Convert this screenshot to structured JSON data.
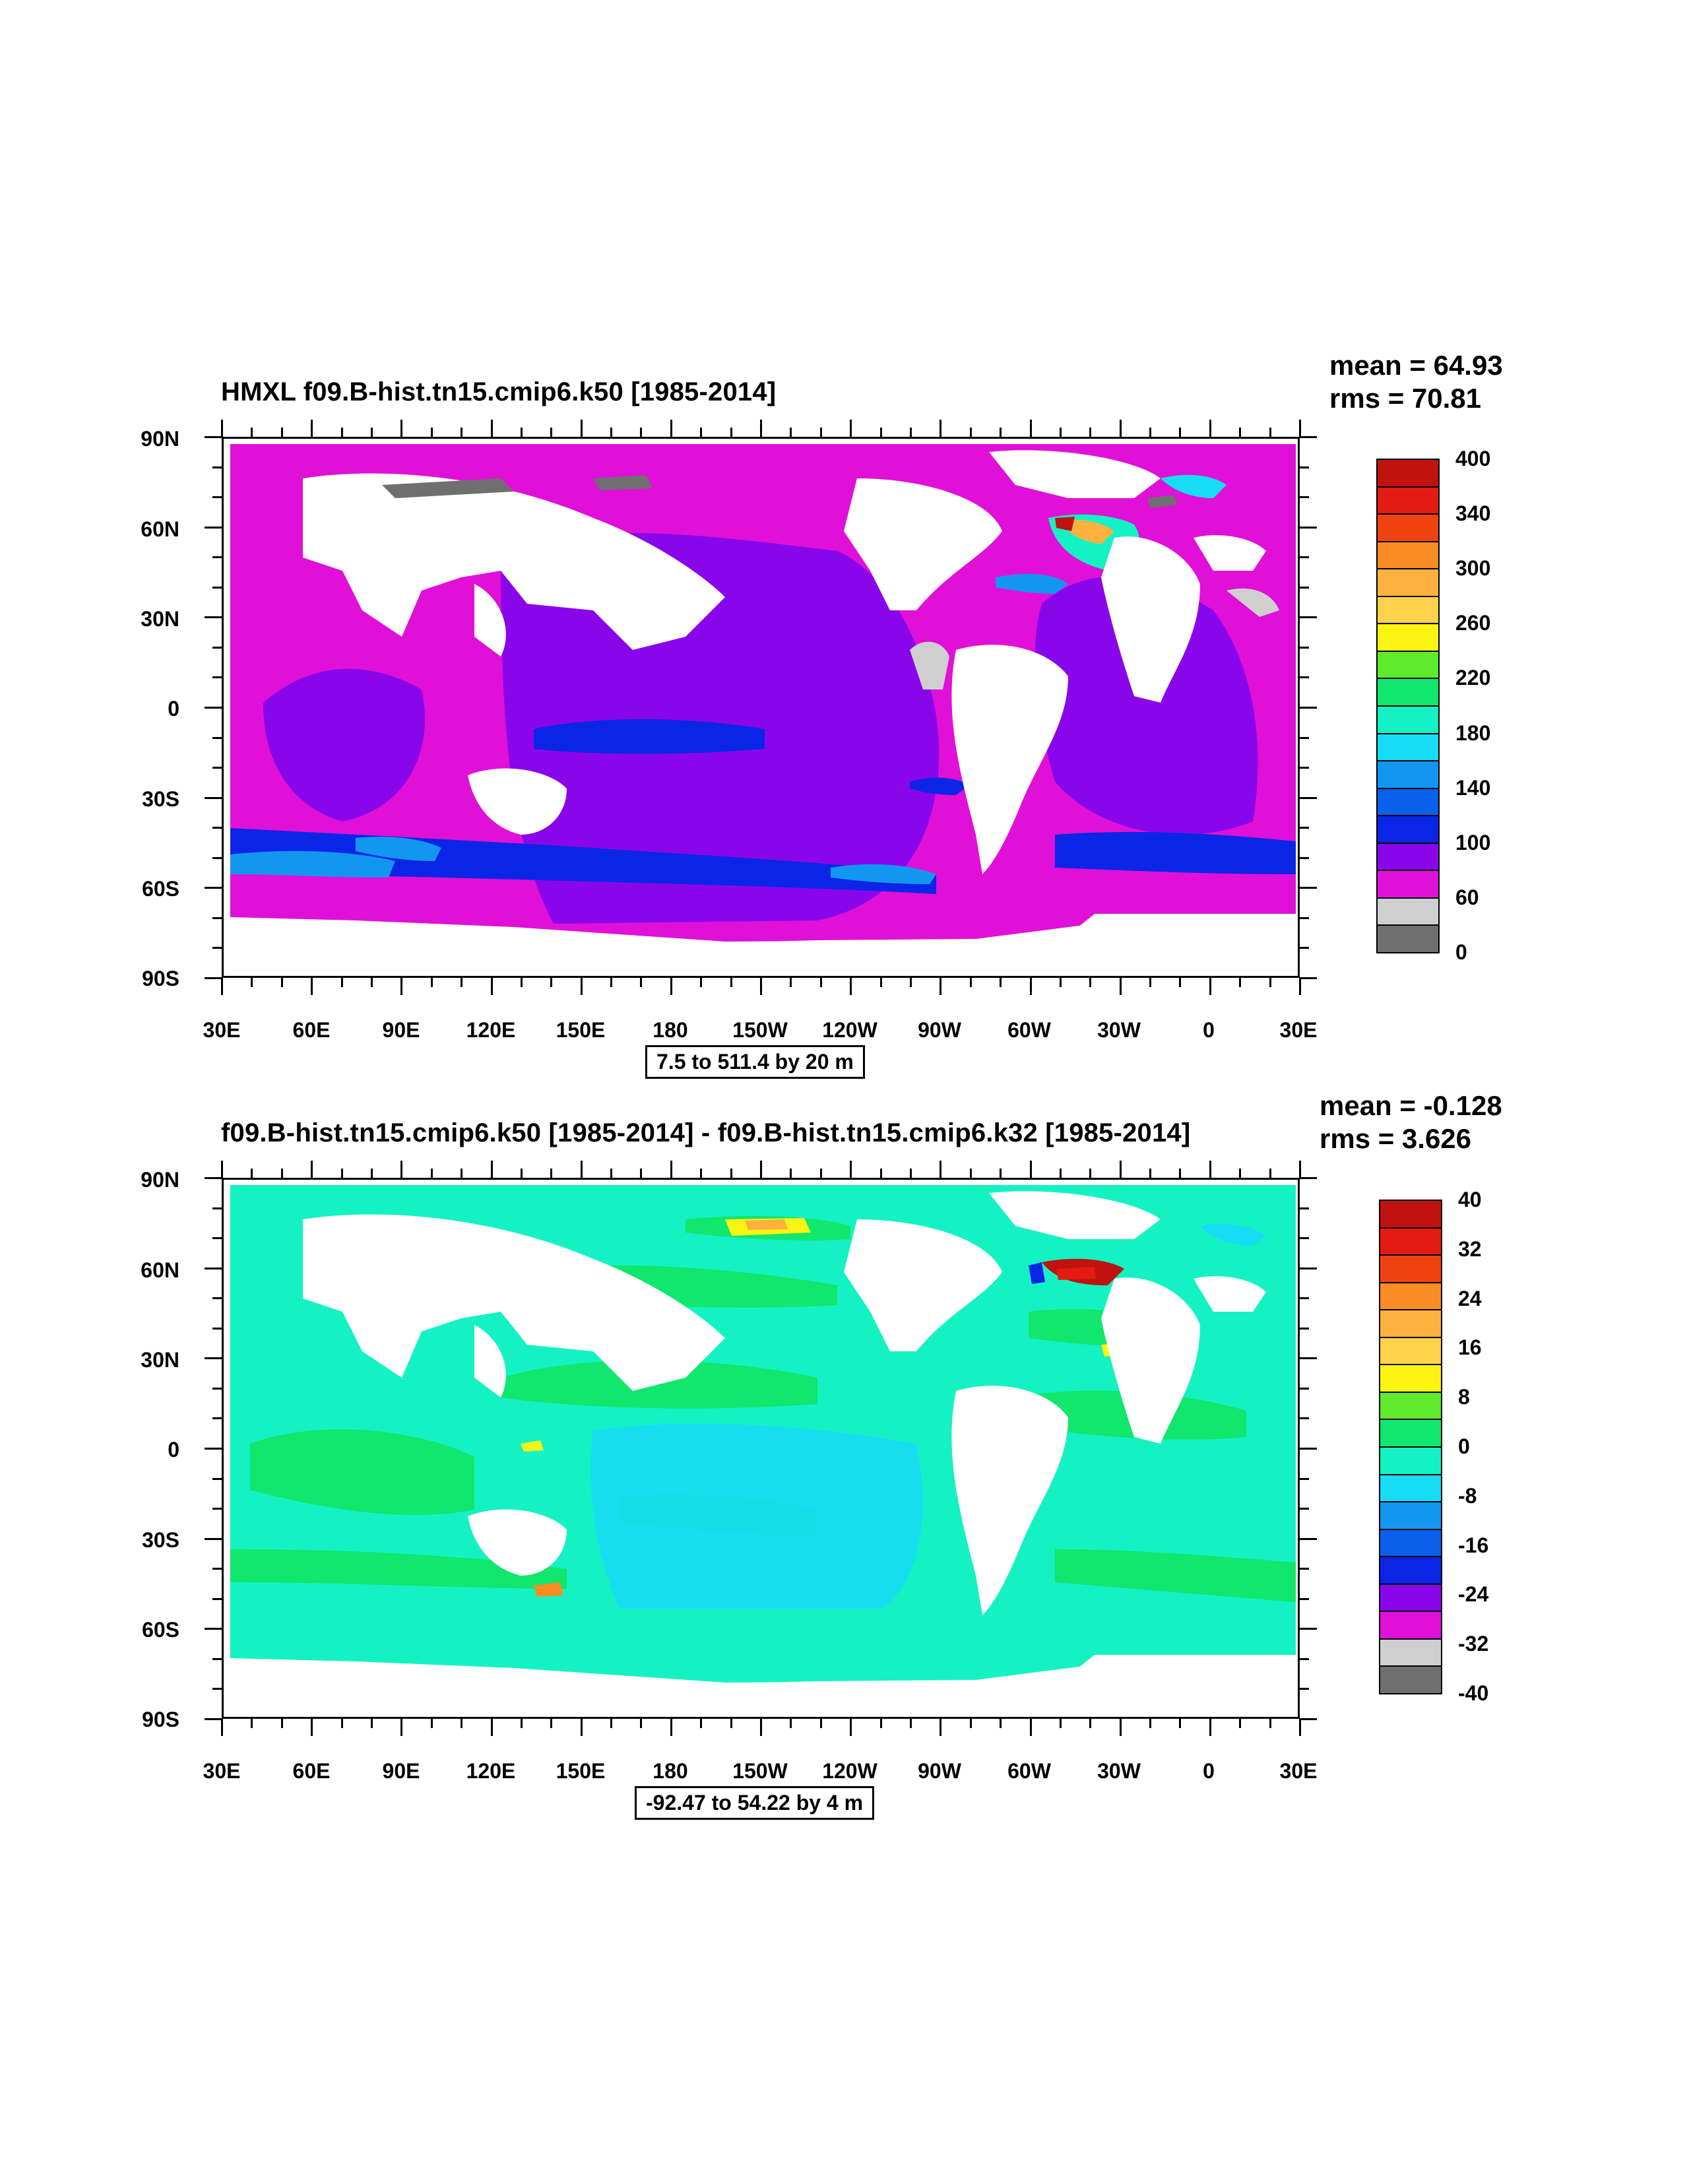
{
  "panels": [
    {
      "title": "HMXL f09.B-hist.tn15.cmip6.k50 [1985-2014]",
      "mean_label": "mean = 64.93",
      "rms_label": "rms = 70.81",
      "range_label": "7.5 to 511.4 by 20 m",
      "lat_labels": [
        "90N",
        "60N",
        "30N",
        "0",
        "30S",
        "60S",
        "90S"
      ],
      "lon_labels": [
        "30E",
        "60E",
        "90E",
        "120E",
        "150E",
        "180",
        "150W",
        "120W",
        "90W",
        "60W",
        "30W",
        "0",
        "30E"
      ],
      "colorbar": {
        "labels": [
          "400",
          "340",
          "300",
          "260",
          "220",
          "180",
          "140",
          "100",
          "60",
          "0"
        ],
        "colors": [
          "#c0120f",
          "#e41b13",
          "#f0420f",
          "#f98d23",
          "#fdb23f",
          "#ffd24d",
          "#fbf312",
          "#5fea2e",
          "#11e66d",
          "#14f2c4",
          "#16dcf4",
          "#1396f0",
          "#0a60e8",
          "#0a25e6",
          "#8a06ea",
          "#e010d8",
          "#cfcfcf",
          "#6f6f6f"
        ]
      }
    },
    {
      "title": "f09.B-hist.tn15.cmip6.k50 [1985-2014] - f09.B-hist.tn15.cmip6.k32 [1985-2014]",
      "mean_label": "mean = -0.128",
      "rms_label": "rms = 3.626",
      "range_label": "-92.47 to 54.22 by 4 m",
      "lat_labels": [
        "90N",
        "60N",
        "30N",
        "0",
        "30S",
        "60S",
        "90S"
      ],
      "lon_labels": [
        "30E",
        "60E",
        "90E",
        "120E",
        "150E",
        "180",
        "150W",
        "120W",
        "90W",
        "60W",
        "30W",
        "0",
        "30E"
      ],
      "colorbar": {
        "labels": [
          "40",
          "32",
          "24",
          "16",
          "8",
          "0",
          "-8",
          "-16",
          "-24",
          "-32",
          "-40"
        ],
        "colors": [
          "#c0120f",
          "#e41b13",
          "#f0420f",
          "#f98d23",
          "#fdb23f",
          "#ffd24d",
          "#fbf312",
          "#5fea2e",
          "#11e66d",
          "#14f2c4",
          "#16dcf4",
          "#1396f0",
          "#0a60e8",
          "#0a25e6",
          "#8a06ea",
          "#e010d8",
          "#cfcfcf",
          "#6f6f6f"
        ]
      }
    }
  ]
}
